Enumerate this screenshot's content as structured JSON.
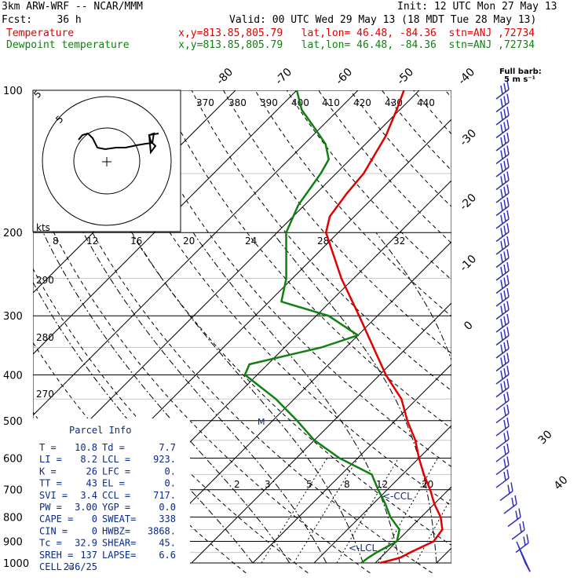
{
  "header": {
    "model": "3km ARW-WRF -- NCAR/MMM",
    "init": "Init: 12 UTC Mon 27 May 13",
    "fcst": "Fcst:    36 h",
    "valid": "Valid: 00 UTC Wed 29 May 13 (18 MDT Tue 28 May 13)",
    "temp_line": "Temperature                 x,y=813.85,805.79   lat,lon= 46.48, -84.36  stn=ANJ ,72734",
    "dew_line": "Dewpoint temperature        x,y=813.85,805.79   lat,lon= 46.48, -84.36  stn=ANJ ,72734"
  },
  "wind_legend": {
    "line1": "Full barb:",
    "line2": "5 m s⁻¹"
  },
  "pressure_labels": [
    "100",
    "200",
    "300",
    "400",
    "500",
    "600",
    "700",
    "800",
    "900",
    "1000"
  ],
  "temp_top_labels": [
    "-80",
    "-70",
    "-60",
    "-50",
    "-40"
  ],
  "temp_right_labels": [
    "-30",
    "-20",
    "-10",
    "0",
    "30",
    "40"
  ],
  "theta_e_labels": [
    "370",
    "380",
    "390",
    "400",
    "410",
    "420",
    "430",
    "440"
  ],
  "mixing_ratio_labels": [
    "8",
    "12",
    "16",
    "20",
    "24",
    "28",
    "32"
  ],
  "mixing_ratio_low_labels": [
    "2",
    "3",
    "5",
    "8",
    "12",
    "20"
  ],
  "dry_adiabat_labels": [
    "290",
    "280",
    "270"
  ],
  "hodograph": {
    "unit": "kts",
    "ring_labels": [
      "5"
    ],
    "outer_label": "5"
  },
  "annotations": {
    "ccl": "<-CCL",
    "lcl": "<-LCL"
  },
  "parcel_info": {
    "title": "Parcel Info",
    "rows": [
      [
        "T   =",
        "10.8",
        "Td =",
        "7.7"
      ],
      [
        "LI  =",
        "8.2",
        "LCL =",
        "923."
      ],
      [
        "K   =",
        "26",
        "LFC =",
        "0."
      ],
      [
        "TT  =",
        "43",
        "EL  =",
        "0."
      ],
      [
        "SVI =",
        "3.4",
        "CCL =",
        "717."
      ],
      [
        "PW  =",
        "3.00",
        "YGP =",
        "0.0"
      ],
      [
        "CAPE =",
        "0",
        "SWEAT=",
        "338"
      ],
      [
        "CIN  =",
        "0",
        "HWBZ=",
        "3868."
      ],
      [
        "Tc   =",
        "32.9",
        "SHEAR=",
        "45."
      ],
      [
        "SREH =",
        "137",
        "LAPSE=",
        "6.6"
      ],
      [
        "CELL =",
        "236/25",
        "",
        ""
      ]
    ]
  },
  "colors": {
    "temperature": "#e00000",
    "dewpoint": "#108010",
    "wind": "#3030c0",
    "parcel": "#0a2a8a"
  },
  "chart_data": {
    "type": "line",
    "title": "",
    "xlabel": "",
    "ylabel": "",
    "y_axis": "pressure (hPa), log scale",
    "ylim": [
      1000,
      100
    ],
    "series": [
      {
        "name": "Temperature",
        "points": [
          [
            1000,
            10.8
          ],
          [
            975,
            13.2
          ],
          [
            950,
            14.0
          ],
          [
            900,
            16.0
          ],
          [
            850,
            15.5
          ],
          [
            800,
            13.2
          ],
          [
            750,
            10.0
          ],
          [
            700,
            7.0
          ],
          [
            650,
            3.5
          ],
          [
            600,
            0.0
          ],
          [
            550,
            -3.5
          ],
          [
            500,
            -8.0
          ],
          [
            450,
            -12.5
          ],
          [
            400,
            -19.0
          ],
          [
            350,
            -25.5
          ],
          [
            300,
            -33.0
          ],
          [
            250,
            -42.0
          ],
          [
            200,
            -52.0
          ],
          [
            185,
            -54.0
          ],
          [
            165,
            -55.0
          ],
          [
            150,
            -55.5
          ],
          [
            125,
            -58.0
          ],
          [
            110,
            -60.5
          ],
          [
            100,
            -62.5
          ]
        ]
      },
      {
        "name": "Dewpoint temperature",
        "points": [
          [
            1000,
            7.7
          ],
          [
            975,
            8.0
          ],
          [
            950,
            8.5
          ],
          [
            900,
            10.0
          ],
          [
            850,
            8.5
          ],
          [
            800,
            5.0
          ],
          [
            750,
            2.0
          ],
          [
            700,
            -1.5
          ],
          [
            650,
            -5.0
          ],
          [
            600,
            -13.0
          ],
          [
            550,
            -20.0
          ],
          [
            500,
            -26.0
          ],
          [
            450,
            -33.0
          ],
          [
            400,
            -42.0
          ],
          [
            380,
            -43.0
          ],
          [
            350,
            -34.0
          ],
          [
            330,
            -30.0
          ],
          [
            300,
            -38.0
          ],
          [
            280,
            -48.0
          ],
          [
            250,
            -51.0
          ],
          [
            200,
            -58.5
          ],
          [
            175,
            -61.0
          ],
          [
            150,
            -62.5
          ],
          [
            140,
            -63.5
          ],
          [
            130,
            -66.5
          ],
          [
            120,
            -71.0
          ],
          [
            110,
            -76.0
          ],
          [
            100,
            -80.0
          ]
        ]
      }
    ]
  }
}
